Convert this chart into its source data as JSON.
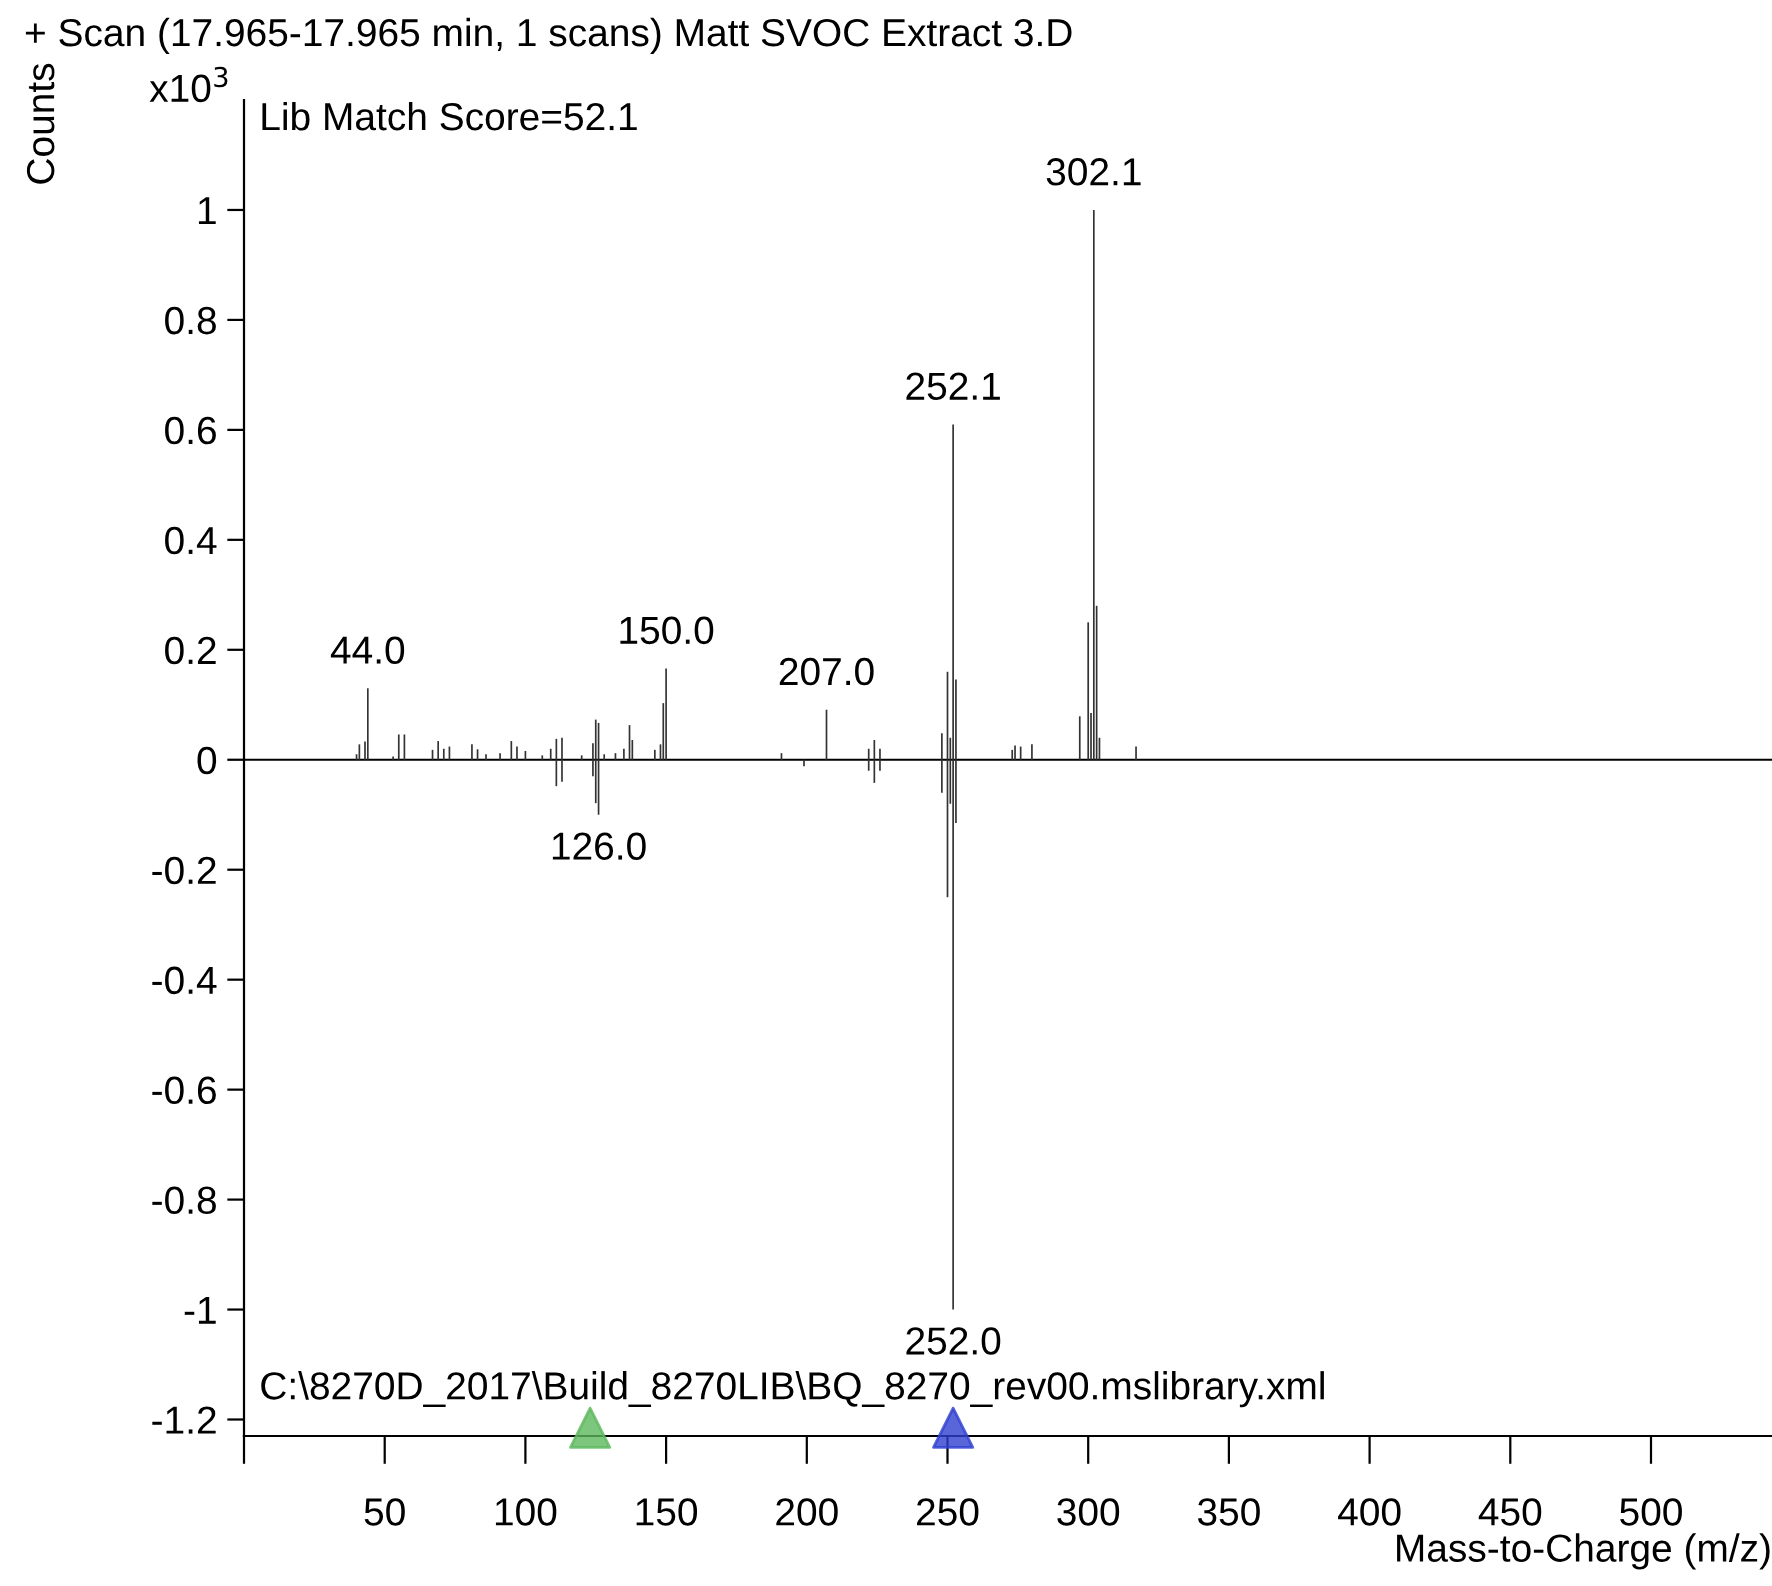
{
  "chart_data": {
    "type": "bar",
    "title": "+ Scan (17.965-17.965 min, 1 scans) Matt SVOC Extract 3.D",
    "xlabel": "Mass-to-Charge (m/z)",
    "ylabel": "Counts",
    "annotations": [
      "Lib Match Score=52.1",
      "C:\\8270D_2017\\Build_8270LIB\\BQ_8270_rev00.mslibrary.xml",
      "x10$^{3}$",
      {
        "text": "44.0",
        "x": 44,
        "y": 0.13
      },
      {
        "text": "126.0",
        "x": 126,
        "y": -0.1
      },
      {
        "text": "150.0",
        "x": 150,
        "y": 0.166
      },
      {
        "text": "207.0",
        "x": 207,
        "y": 0.091
      },
      {
        "text": "252.1",
        "x": 252,
        "y": 0.61
      },
      {
        "text": "252.0",
        "x": 252,
        "y": -1.0
      },
      {
        "text": "302.1",
        "x": 302,
        "y": 1.0
      }
    ],
    "series": [
      {
        "color": "#333333",
        "x": [
          40,
          41,
          43,
          44,
          53,
          55,
          57,
          67,
          69,
          71,
          73,
          81,
          83,
          86,
          91,
          95,
          97,
          100,
          106,
          109,
          111,
          113,
          120,
          124,
          125,
          126,
          128,
          132,
          135,
          137,
          138,
          146,
          148,
          149,
          150,
          191,
          207,
          222,
          224,
          226,
          248,
          250,
          251,
          252,
          253,
          273,
          274,
          276,
          280,
          297,
          300,
          301,
          302,
          303,
          304,
          317
        ],
        "values": [
          0.01,
          0.028,
          0.033,
          0.13,
          0.006,
          0.046,
          0.046,
          0.018,
          0.034,
          0.02,
          0.024,
          0.028,
          0.019,
          0.01,
          0.012,
          0.034,
          0.024,
          0.016,
          0.008,
          0.02,
          0.038,
          0.04,
          0.008,
          0.03,
          0.073,
          0.067,
          0.01,
          0.012,
          0.02,
          0.063,
          0.036,
          0.018,
          0.028,
          0.103,
          0.166,
          0.012,
          0.091,
          0.02,
          0.036,
          0.02,
          0.048,
          0.16,
          0.04,
          0.61,
          0.146,
          0.018,
          0.026,
          0.024,
          0.028,
          0.079,
          0.25,
          0.085,
          1.0,
          0.28,
          0.04,
          0.024
        ]
      },
      {
        "color": "#333333",
        "x": [
          111,
          113,
          124,
          125,
          126,
          199,
          222,
          224,
          226,
          248,
          250,
          251,
          252,
          253
        ],
        "values": [
          -0.048,
          -0.04,
          -0.03,
          -0.079,
          -0.1,
          -0.012,
          -0.02,
          -0.042,
          -0.02,
          -0.06,
          -0.25,
          -0.08,
          -1.0,
          -0.115
        ]
      },
      {
        "type": "scatter",
        "marker": "triangle",
        "color": "#5cb85c",
        "x": [
          123
        ],
        "values": [
          -1.215
        ]
      },
      {
        "type": "scatter",
        "marker": "triangle",
        "color": "#3040d0",
        "x": [
          252
        ],
        "values": [
          -1.215
        ]
      }
    ],
    "ref_lines": [
      {
        "axis": "y",
        "value": 0,
        "color": "#000000"
      }
    ],
    "xlim": [
      0,
      543
    ],
    "ylim": [
      -1.23,
      1.2
    ],
    "xticks": [
      {
        "value": 0,
        "label": null
      },
      50,
      100,
      150,
      200,
      250,
      300,
      350,
      400,
      450,
      500
    ],
    "yticks": [
      -1.2,
      -1,
      -0.8,
      -0.6,
      -0.4,
      -0.2,
      0,
      0.2,
      0.4,
      0.6,
      0.8,
      1
    ],
    "grid": false,
    "legend": false
  }
}
